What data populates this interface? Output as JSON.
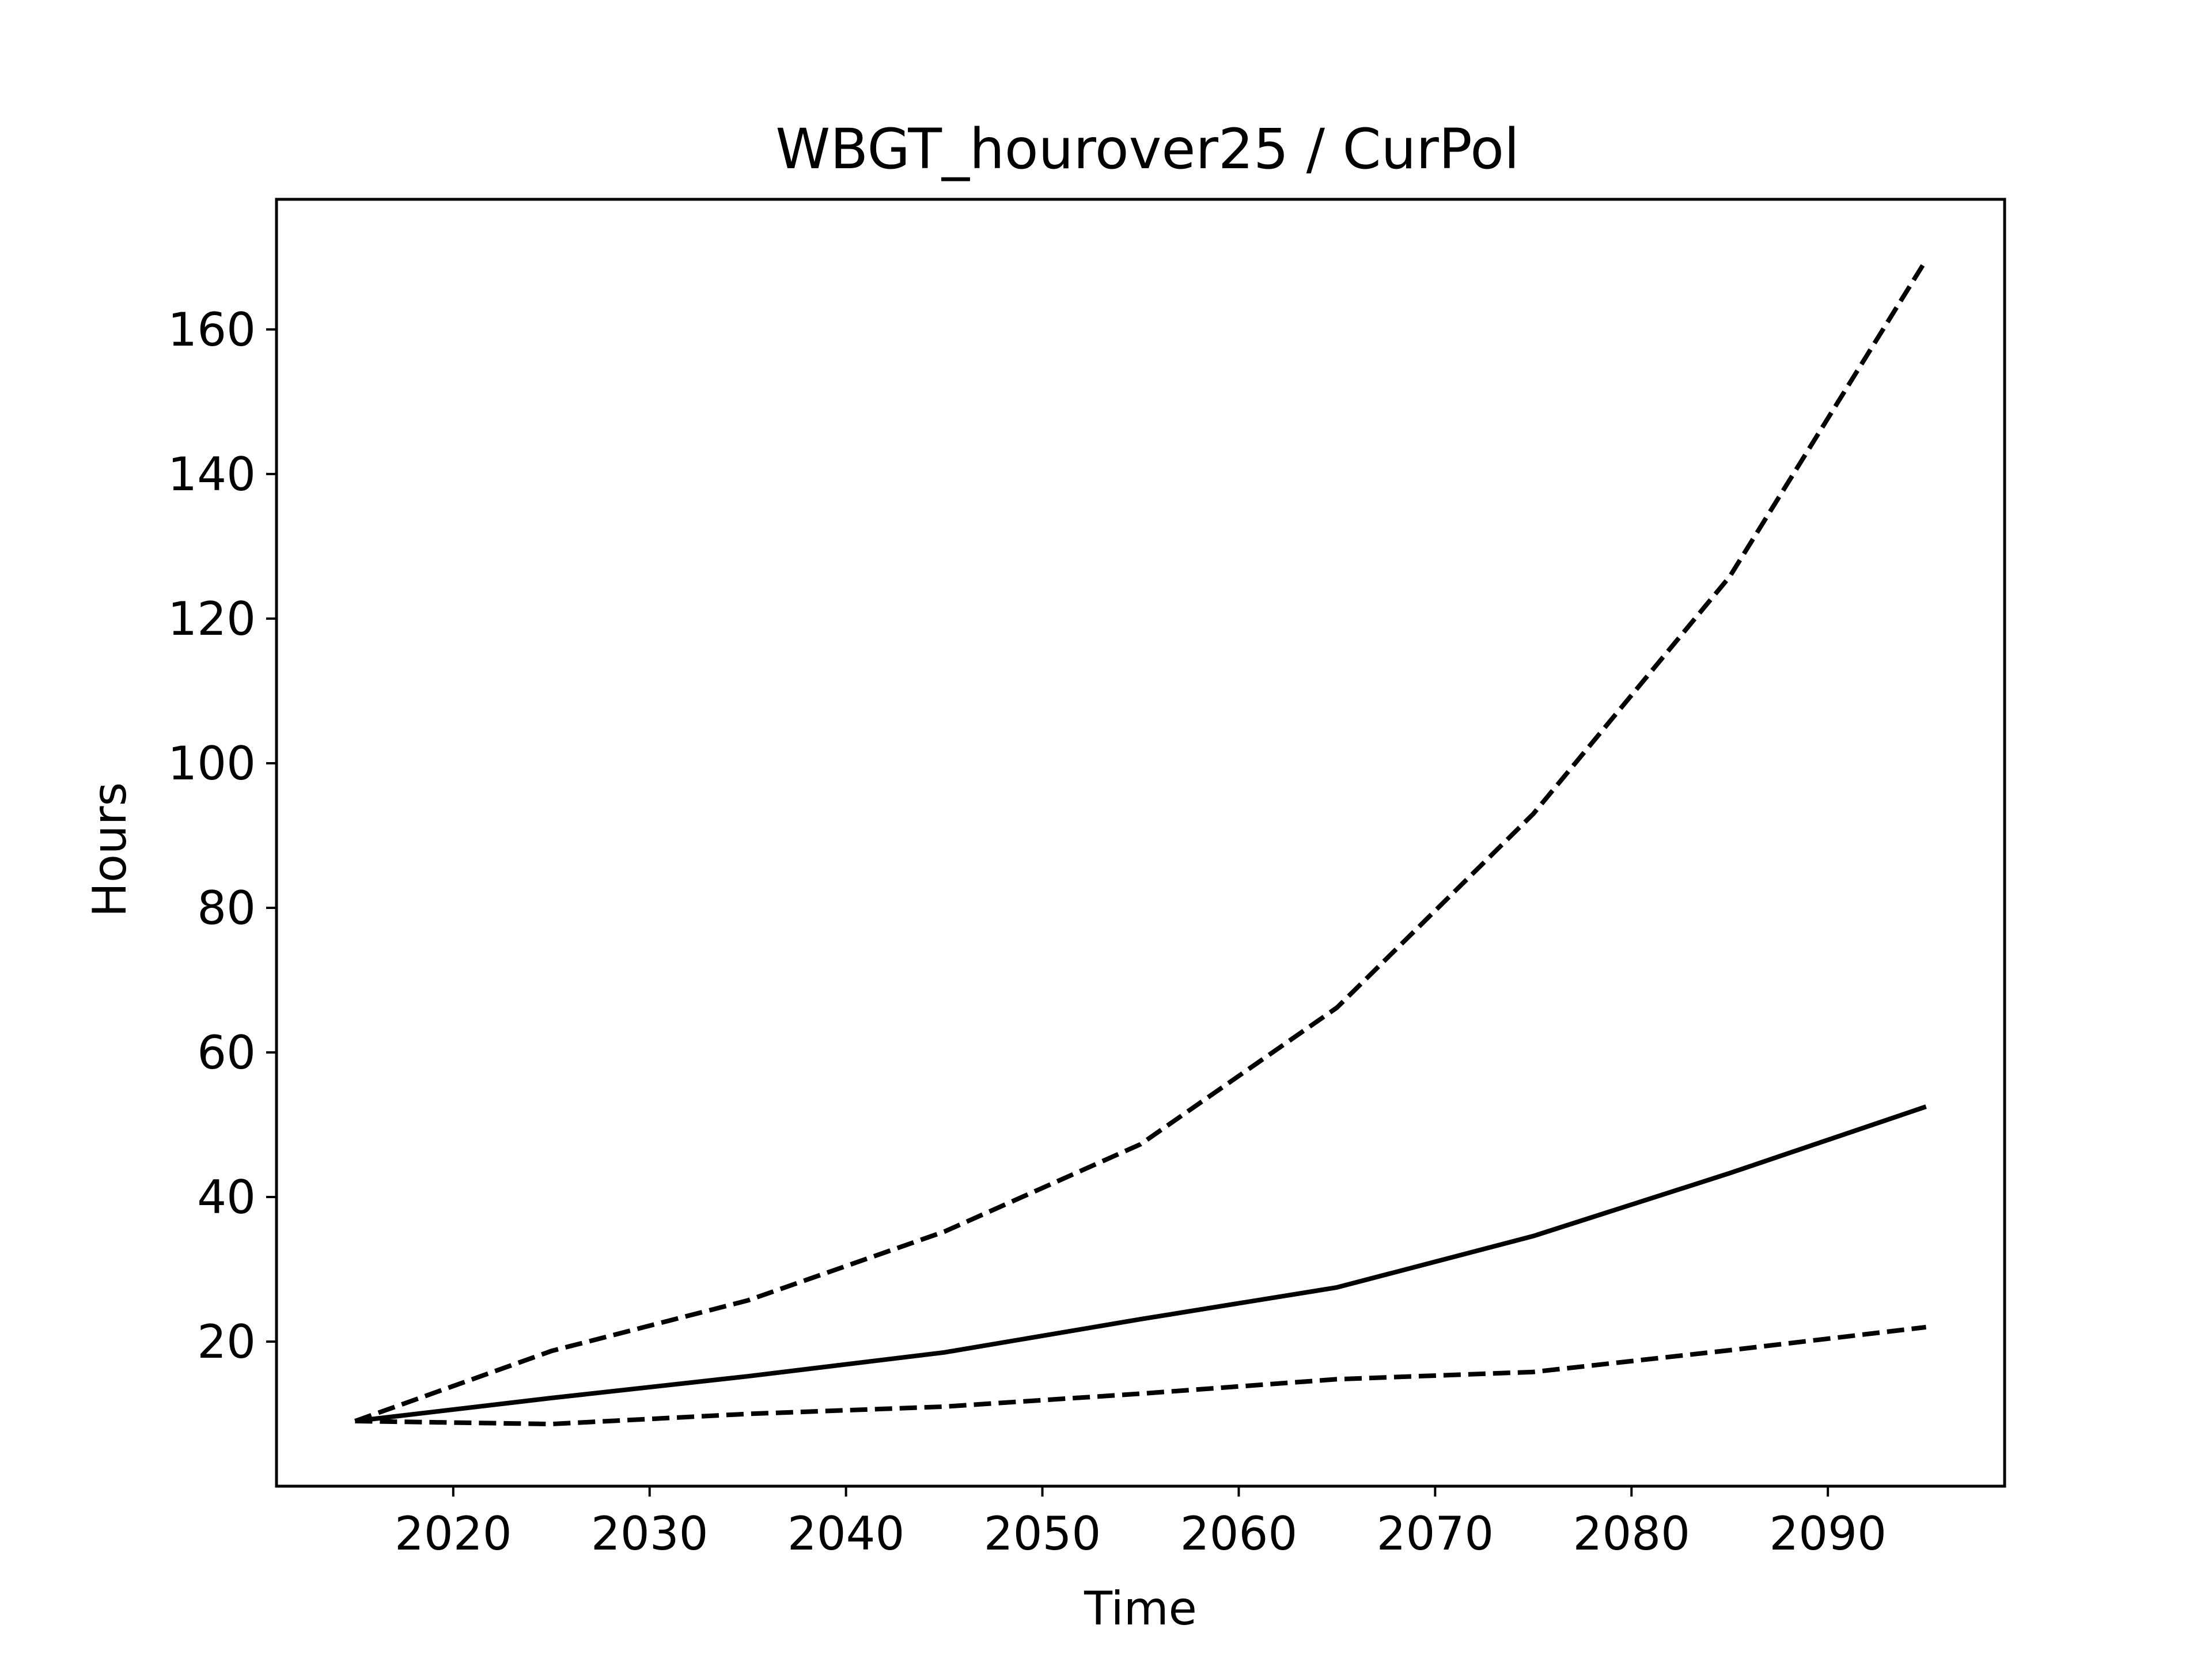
{
  "chart_data": {
    "type": "line",
    "title": "WBGT_hourover25 / CurPol",
    "xlabel": "Time",
    "ylabel": "Hours",
    "xlim": [
      2011.0,
      2099.0
    ],
    "ylim": [
      0,
      178
    ],
    "xticks": [
      2020,
      2030,
      2040,
      2050,
      2060,
      2070,
      2080,
      2090
    ],
    "yticks": [
      20,
      40,
      60,
      80,
      100,
      120,
      140,
      160
    ],
    "grid": false,
    "legend": "none",
    "color": "#000000",
    "series": [
      {
        "style": "dashed",
        "x": [
          2015,
          2025,
          2035,
          2045,
          2055,
          2065,
          2075,
          2085,
          2095
        ],
        "y": [
          9.0,
          18.7,
          25.7,
          35.2,
          47.3,
          66.2,
          93.0,
          125.8,
          169.6
        ]
      },
      {
        "style": "solid",
        "x": [
          2015,
          2025,
          2035,
          2045,
          2055,
          2065,
          2075,
          2085,
          2095
        ],
        "y": [
          9.0,
          12.2,
          15.2,
          18.5,
          23.1,
          27.5,
          34.6,
          43.3,
          52.5
        ]
      },
      {
        "style": "dashed",
        "x": [
          2015,
          2025,
          2035,
          2045,
          2055,
          2065,
          2075,
          2085,
          2095
        ],
        "y": [
          9.0,
          8.6,
          10.0,
          11.0,
          12.8,
          14.8,
          15.8,
          18.8,
          22.0
        ]
      }
    ]
  }
}
